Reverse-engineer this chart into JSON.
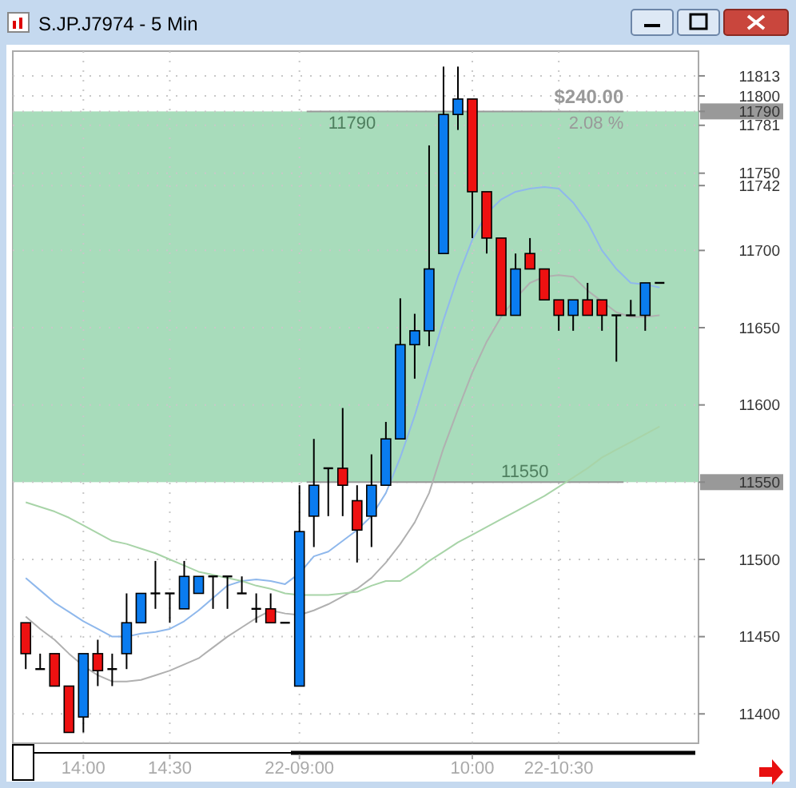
{
  "chart_data": {
    "type": "candlestick",
    "title": "S.JP.J7974 - 5 Min",
    "categories": [
      null,
      null,
      null,
      null,
      "14:00",
      null,
      null,
      null,
      null,
      null,
      "14:30",
      null,
      null,
      null,
      null,
      null,
      null,
      null,
      null,
      "22-09:00",
      null,
      null,
      null,
      null,
      null,
      null,
      null,
      null,
      null,
      null,
      null,
      "10:00",
      null,
      null,
      null,
      null,
      null,
      "22-10:30",
      null,
      null,
      null,
      null,
      null,
      null,
      null
    ],
    "ohlc": [
      [
        11459,
        11459,
        11429,
        11439
      ],
      [
        11429,
        11439,
        11429,
        11429
      ],
      [
        11439,
        11439,
        11418,
        11418
      ],
      [
        11418,
        11418,
        11388,
        11388
      ],
      [
        11398,
        11439,
        11388,
        11439
      ],
      [
        11439,
        11448,
        11418,
        11428
      ],
      [
        11429,
        11439,
        11418,
        11429
      ],
      [
        11439,
        11478,
        11429,
        11459
      ],
      [
        11459,
        11478,
        11459,
        11478
      ],
      [
        11478,
        11499,
        11468,
        11478
      ],
      [
        11478,
        11478,
        11459,
        11478
      ],
      [
        11468,
        11499,
        11468,
        11489
      ],
      [
        11478,
        11489,
        11478,
        11489
      ],
      [
        11489,
        11489,
        11468,
        11489
      ],
      [
        11489,
        11489,
        11468,
        11489
      ],
      [
        11478,
        11489,
        11478,
        11478
      ],
      [
        11468,
        11478,
        11459,
        11468
      ],
      [
        11468,
        11478,
        11459,
        11459
      ],
      [
        11459,
        11459,
        11459,
        11459
      ],
      [
        11418,
        11548,
        11418,
        11518
      ],
      [
        11528,
        11578,
        11508,
        11548
      ],
      [
        11559,
        11559,
        11528,
        11559
      ],
      [
        11559,
        11598,
        11528,
        11548
      ],
      [
        11538,
        11548,
        11498,
        11519
      ],
      [
        11528,
        11568,
        11508,
        11548
      ],
      [
        11548,
        11589,
        11548,
        11578
      ],
      [
        11578,
        11669,
        11578,
        11639
      ],
      [
        11639,
        11659,
        11617,
        11648
      ],
      [
        11648,
        11768,
        11638,
        11688
      ],
      [
        11698,
        11819,
        11698,
        11788
      ],
      [
        11788,
        11819,
        11778,
        11798
      ],
      [
        11798,
        11798,
        11708,
        11738
      ],
      [
        11738,
        11738,
        11698,
        11708
      ],
      [
        11708,
        11708,
        11658,
        11658
      ],
      [
        11658,
        11698,
        11658,
        11688
      ],
      [
        11698,
        11708,
        11688,
        11688
      ],
      [
        11688,
        11688,
        11668,
        11668
      ],
      [
        11668,
        11668,
        11648,
        11658
      ],
      [
        11658,
        11668,
        11648,
        11668
      ],
      [
        11668,
        11679,
        11658,
        11658
      ],
      [
        11668,
        11668,
        11648,
        11658
      ],
      [
        11658,
        11658,
        11628,
        11658
      ],
      [
        11658,
        11668,
        11658,
        11658
      ],
      [
        11658,
        11679,
        11648,
        11679
      ],
      [
        11679,
        11679,
        11679,
        11679
      ]
    ],
    "colors": [
      "#ee1111",
      "#000000",
      "#ee1111",
      "#ee1111",
      "#0a7cf0",
      "#ee1111",
      "#000000",
      "#0a7cf0",
      "#0a7cf0",
      "#000000",
      "#000000",
      "#0a7cf0",
      "#0a7cf0",
      "#000000",
      "#000000",
      "#000000",
      "#000000",
      "#ee1111",
      "#000000",
      "#0a7cf0",
      "#0a7cf0",
      "#000000",
      "#ee1111",
      "#ee1111",
      "#0a7cf0",
      "#0a7cf0",
      "#0a7cf0",
      "#0a7cf0",
      "#0a7cf0",
      "#0a7cf0",
      "#0a7cf0",
      "#ee1111",
      "#ee1111",
      "#ee1111",
      "#0a7cf0",
      "#ee1111",
      "#ee1111",
      "#ee1111",
      "#0a7cf0",
      "#ee1111",
      "#ee1111",
      "#000000",
      "#000000",
      "#0a7cf0",
      "#000000"
    ],
    "series": [
      {
        "type": "line",
        "color": "#8fb8ec",
        "values": [
          11488,
          11480,
          11472,
          11466,
          11460,
          11455,
          11450,
          11450,
          11452,
          11453,
          11455,
          11460,
          11467,
          11475,
          11483,
          11486,
          11487,
          11486,
          11484,
          11491,
          11502,
          11505,
          11512,
          11519,
          11528,
          11543,
          11566,
          11593,
          11624,
          11655,
          11683,
          11707,
          11724,
          11733,
          11738,
          11740,
          11741,
          11740,
          11731,
          11718,
          11700,
          11688,
          11679,
          11678,
          11676
        ]
      },
      {
        "type": "line",
        "color": "#b0b0b0",
        "values": [
          11463,
          11455,
          11448,
          11439,
          11431,
          11425,
          11421,
          11421,
          11422,
          11425,
          11428,
          11432,
          11436,
          11443,
          11450,
          11456,
          11462,
          11467,
          11465,
          11464,
          11467,
          11471,
          11476,
          11481,
          11488,
          11498,
          11510,
          11524,
          11543,
          11572,
          11597,
          11621,
          11641,
          11657,
          11669,
          11679,
          11683,
          11684,
          11683,
          11674,
          11667,
          11660,
          11657,
          11657,
          11658
        ]
      },
      {
        "type": "line",
        "color": "#a8d4a8",
        "values": [
          11537,
          11534,
          11531,
          11527,
          11522,
          11517,
          11512,
          11510,
          11507,
          11504,
          11500,
          11496,
          11492,
          11490,
          11488,
          11486,
          11483,
          11481,
          11478,
          11477,
          11477,
          11477,
          11478,
          11479,
          11483,
          11486,
          11486,
          11492,
          11499,
          11505,
          11511,
          11516,
          11521,
          11526,
          11531,
          11536,
          11541,
          11547,
          11553,
          11559,
          11566,
          11571,
          11576,
          11581,
          11586
        ]
      }
    ],
    "ylim": [
      11381,
      11829
    ],
    "yticks": [
      11400,
      11450,
      11500,
      11550,
      11600,
      11650,
      11700,
      11742,
      11750,
      11781,
      11790,
      11800,
      11813
    ],
    "grid": true,
    "marker": "none",
    "bands": [
      {
        "axis": "y",
        "from": 11550,
        "to": 11790,
        "color": "#9ed8b4"
      }
    ],
    "ref_lines": [
      {
        "axis": "y",
        "value": 11790,
        "label": "11790",
        "color": "#999999"
      },
      {
        "axis": "y",
        "value": 11550,
        "label": "11550",
        "color": "#999999"
      }
    ],
    "annotations": [
      {
        "text": "$240.00",
        "y": 11790
      },
      {
        "text": "2.08 %",
        "y": 11790
      }
    ]
  }
}
